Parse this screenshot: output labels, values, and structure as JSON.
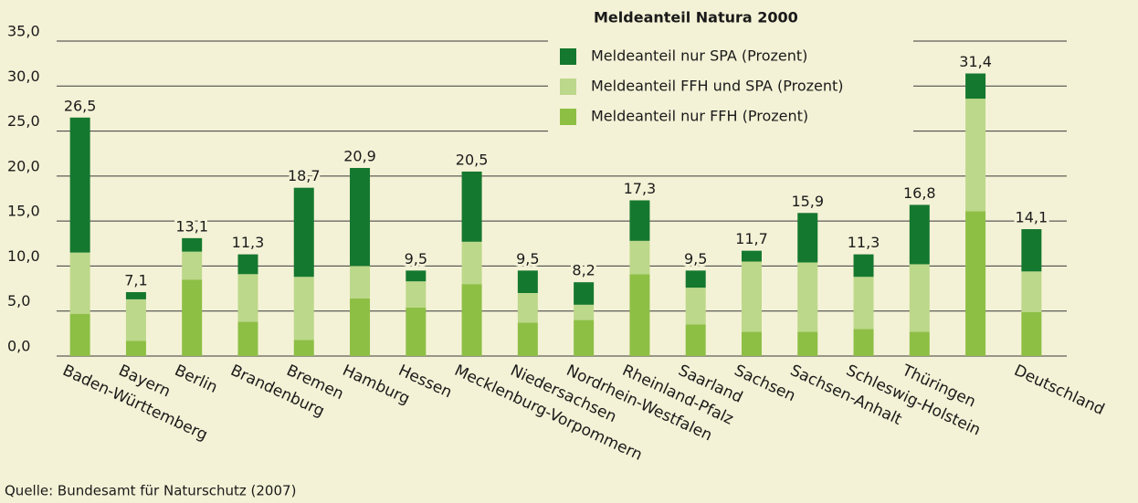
{
  "chart_data": {
    "type": "stacked_bar",
    "legend_title": "Meldeanteil Natura 2000",
    "source": "Quelle: Bundesamt für Naturschutz (2007)",
    "categories": [
      "Baden-Württemberg",
      "Bayern",
      "Berlin",
      "Brandenburg",
      "Bremen",
      "Hamburg",
      "Hessen",
      "Mecklenburg-Vorpommern",
      "Niedersachsen",
      "Nordrhein-Westfalen",
      "Rheinland-Pfalz",
      "Saarland",
      "Sachsen",
      "Sachsen-Anhalt",
      "Schleswig-Holstein",
      "Thüringen",
      null,
      "Deutschland"
    ],
    "series": [
      {
        "name": "Meldeanteil nur FFH (Prozent)",
        "color": "#8dbf45",
        "values": [
          4.7,
          1.7,
          8.5,
          3.8,
          1.8,
          6.4,
          5.4,
          8.0,
          3.7,
          4.0,
          9.1,
          3.5,
          2.7,
          2.7,
          3.0,
          2.7,
          16.1,
          4.9
        ]
      },
      {
        "name": "Meldeanteil FFH und SPA (Prozent)",
        "color": "#bcd88a",
        "values": [
          6.8,
          4.6,
          3.1,
          5.3,
          7.0,
          3.6,
          2.9,
          4.7,
          3.3,
          1.7,
          3.7,
          4.1,
          7.8,
          7.7,
          5.8,
          7.5,
          12.5,
          4.5
        ]
      },
      {
        "name": "Meldeanteil nur SPA (Prozent)",
        "color": "#15782f",
        "values": [
          15.0,
          0.8,
          1.5,
          2.2,
          9.9,
          10.9,
          1.2,
          7.8,
          2.5,
          2.5,
          4.5,
          1.9,
          1.2,
          5.5,
          2.5,
          6.6,
          2.8,
          4.7
        ]
      }
    ],
    "totals": [
      26.5,
      7.1,
      13.1,
      11.3,
      18.7,
      20.9,
      9.5,
      20.5,
      9.5,
      8.2,
      17.3,
      9.5,
      11.7,
      15.9,
      11.3,
      16.8,
      31.4,
      14.1
    ],
    "total_labels": [
      "26,5",
      "7,1",
      "13,1",
      "11,3",
      "18,7",
      "20,9",
      "9,5",
      "20,5",
      "9,5",
      "8,2",
      "17,3",
      "9,5",
      "11,7",
      "15,9",
      "11,3",
      "16,8",
      "31,4",
      "14,1"
    ],
    "ylim": [
      0,
      35
    ],
    "yticks": [
      {
        "value": 0,
        "label": "0,0"
      },
      {
        "value": 5,
        "label": "5,0"
      },
      {
        "value": 10,
        "label": "10,0"
      },
      {
        "value": 15,
        "label": "15,0"
      },
      {
        "value": 20,
        "label": "20,0"
      },
      {
        "value": 25,
        "label": "25,0"
      },
      {
        "value": 30,
        "label": "30,0"
      },
      {
        "value": 35,
        "label": "35,0"
      }
    ],
    "grid": true
  }
}
